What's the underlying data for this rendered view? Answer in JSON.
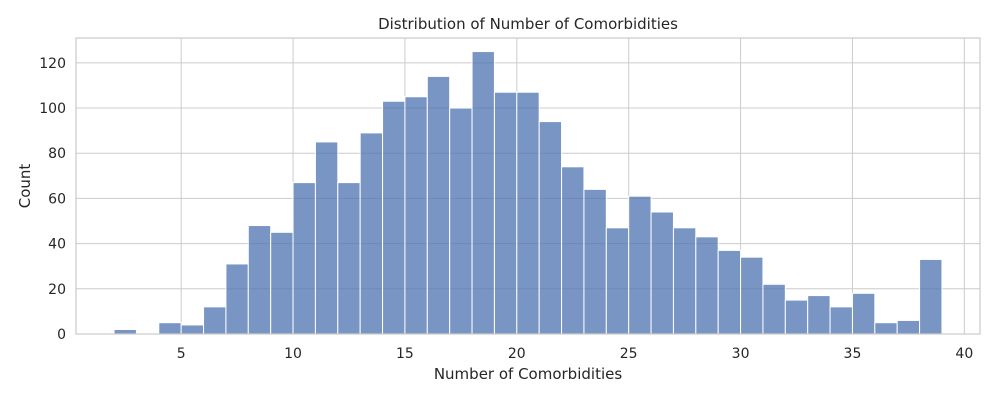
{
  "chart_data": {
    "type": "bar",
    "title": "Distribution of Number of Comorbidities",
    "xlabel": "Number of Comorbidities",
    "ylabel": "Count",
    "bin_start": 2,
    "bin_width": 1,
    "values": [
      2,
      0,
      5,
      4,
      12,
      31,
      48,
      45,
      67,
      85,
      67,
      89,
      103,
      105,
      114,
      100,
      125,
      107,
      107,
      94,
      74,
      64,
      47,
      61,
      54,
      47,
      43,
      37,
      34,
      22,
      15,
      17,
      12,
      18,
      5,
      6,
      33
    ],
    "xlim": [
      0.3,
      40.7
    ],
    "ylim": [
      0,
      131
    ],
    "xticks": [
      5,
      10,
      15,
      20,
      25,
      30,
      35,
      40
    ],
    "yticks": [
      0,
      20,
      40,
      60,
      80,
      100,
      120
    ],
    "grid": true,
    "bar_color": "#4c72b0",
    "bar_opacity": 0.75
  }
}
